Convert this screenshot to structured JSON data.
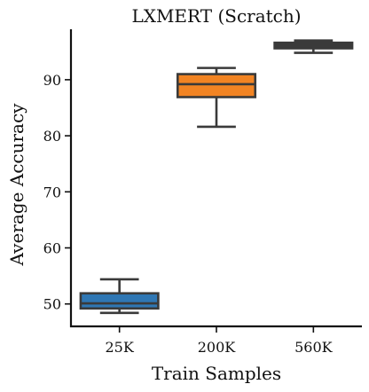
{
  "chart_data": {
    "type": "boxplot",
    "title": "LXMERT (Scratch)",
    "xlabel": "Train Samples",
    "ylabel": "Average Accuracy",
    "categories": [
      "25K",
      "200K",
      "560K"
    ],
    "ylim": [
      46,
      99
    ],
    "yticks": [
      50,
      60,
      70,
      80,
      90
    ],
    "grid": false,
    "boxes": [
      {
        "category": "25K",
        "whisker_low": 48.4,
        "q1": 49.2,
        "median": 50.1,
        "q3": 51.9,
        "whisker_high": 54.4,
        "color": "#2f77b4"
      },
      {
        "category": "200K",
        "whisker_low": 81.6,
        "q1": 86.9,
        "median": 89.2,
        "q3": 91.0,
        "whisker_high": 92.1,
        "color": "#f28423"
      },
      {
        "category": "560K",
        "whisker_low": 94.8,
        "q1": 95.6,
        "median": 96.1,
        "q3": 96.6,
        "whisker_high": 97.0,
        "color": "#3b3b3b"
      }
    ]
  }
}
